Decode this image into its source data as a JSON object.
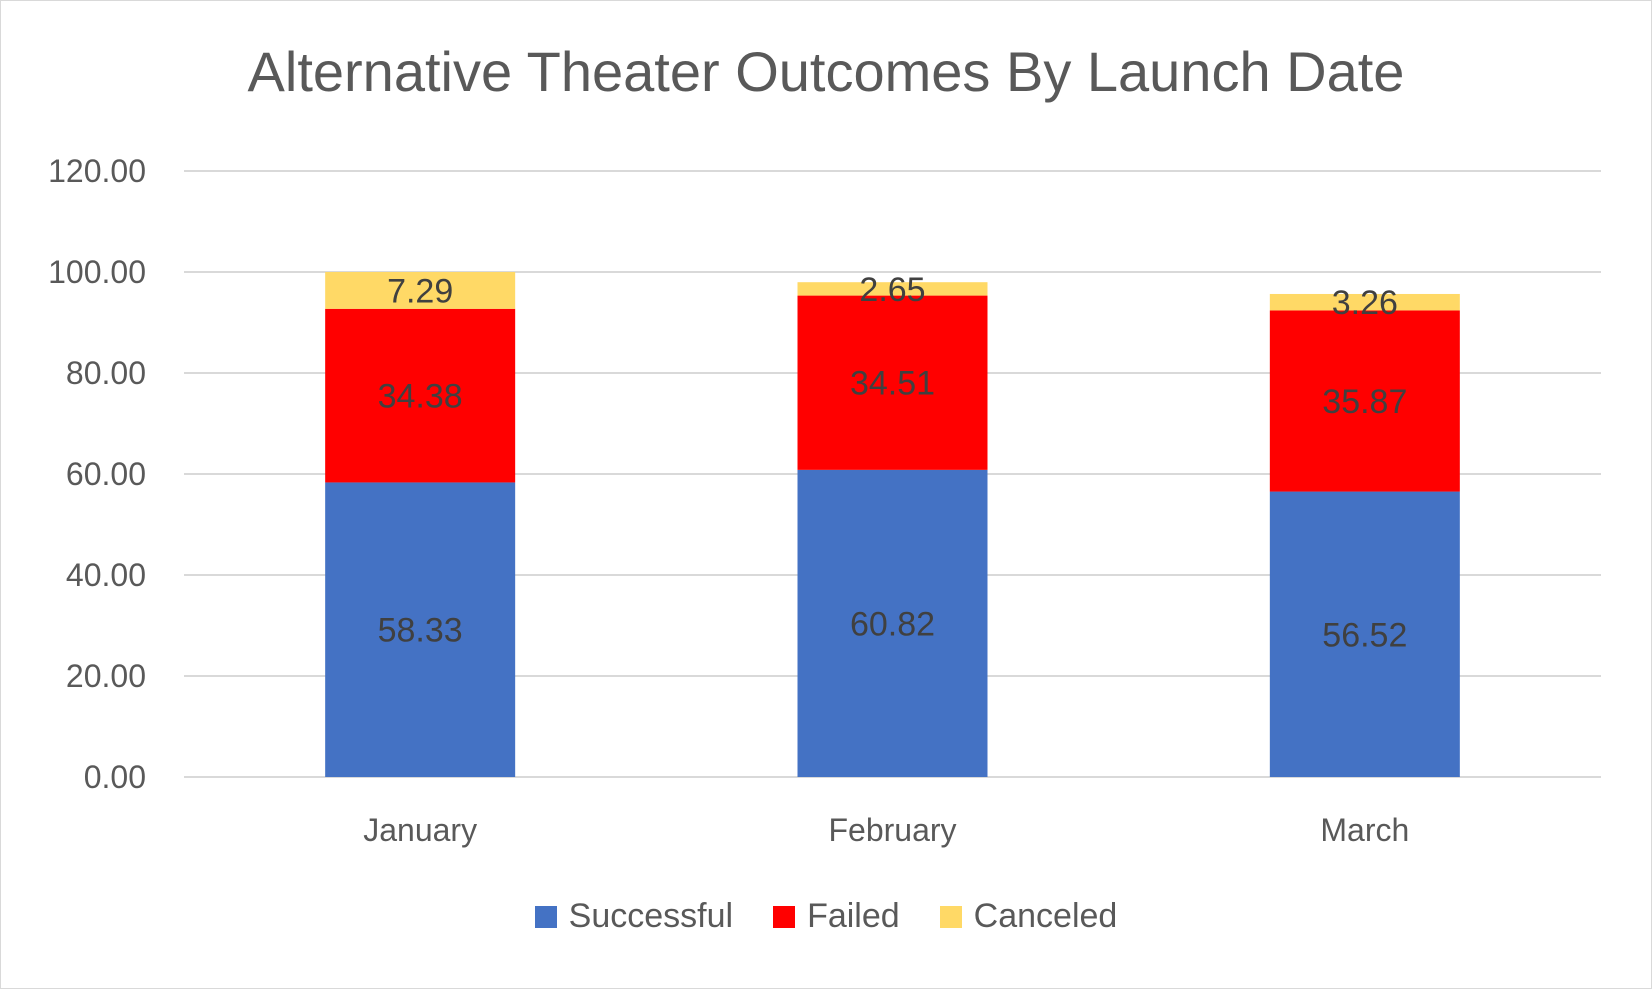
{
  "chart_data": {
    "type": "bar",
    "stacked": true,
    "title": "Alternative Theater Outcomes By Launch Date",
    "categories": [
      "January",
      "February",
      "March"
    ],
    "series": [
      {
        "name": "Successful",
        "color": "#4472c4",
        "values": [
          58.33,
          60.82,
          56.52
        ]
      },
      {
        "name": "Failed",
        "color": "#ff0000",
        "values": [
          34.38,
          34.51,
          35.87
        ]
      },
      {
        "name": "Canceled",
        "color": "#ffd966",
        "values": [
          7.29,
          2.65,
          3.26
        ]
      }
    ],
    "ylim": [
      0,
      120
    ],
    "yticks": [
      "0.00",
      "20.00",
      "40.00",
      "60.00",
      "80.00",
      "100.00",
      "120.00"
    ],
    "grid": true,
    "legend_position": "bottom"
  }
}
